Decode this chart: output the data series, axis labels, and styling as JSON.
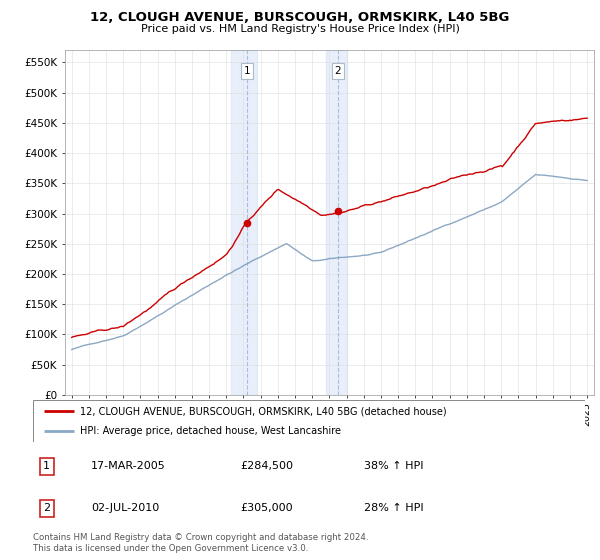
{
  "title_line1": "12, CLOUGH AVENUE, BURSCOUGH, ORMSKIRK, L40 5BG",
  "title_line2": "Price paid vs. HM Land Registry's House Price Index (HPI)",
  "ylabel_ticks": [
    "£0",
    "£50K",
    "£100K",
    "£150K",
    "£200K",
    "£250K",
    "£300K",
    "£350K",
    "£400K",
    "£450K",
    "£500K",
    "£550K"
  ],
  "ytick_values": [
    0,
    50000,
    100000,
    150000,
    200000,
    250000,
    300000,
    350000,
    400000,
    450000,
    500000,
    550000
  ],
  "ylim": [
    0,
    570000
  ],
  "x_start_year": 1995,
  "x_end_year": 2025,
  "red_color": "#cc0000",
  "blue_color": "#7799bb",
  "purchase1": {
    "label": "1",
    "date": "17-MAR-2005",
    "price": 284500,
    "hpi_pct": "38%",
    "year": 2005.21
  },
  "purchase2": {
    "label": "2",
    "date": "02-JUL-2010",
    "price": 305000,
    "hpi_pct": "28%",
    "year": 2010.5
  },
  "legend_line1": "12, CLOUGH AVENUE, BURSCOUGH, ORMSKIRK, L40 5BG (detached house)",
  "legend_line2": "HPI: Average price, detached house, West Lancashire",
  "footer": "Contains HM Land Registry data © Crown copyright and database right 2024.\nThis data is licensed under the Open Government Licence v3.0.",
  "shaded_region1_start": 2004.3,
  "shaded_region1_end": 2005.8,
  "shaded_region2_start": 2009.8,
  "shaded_region2_end": 2011.0,
  "background_color": "#ffffff",
  "grid_color": "#dddddd",
  "xlim_left": 1994.6,
  "xlim_right": 2025.4
}
